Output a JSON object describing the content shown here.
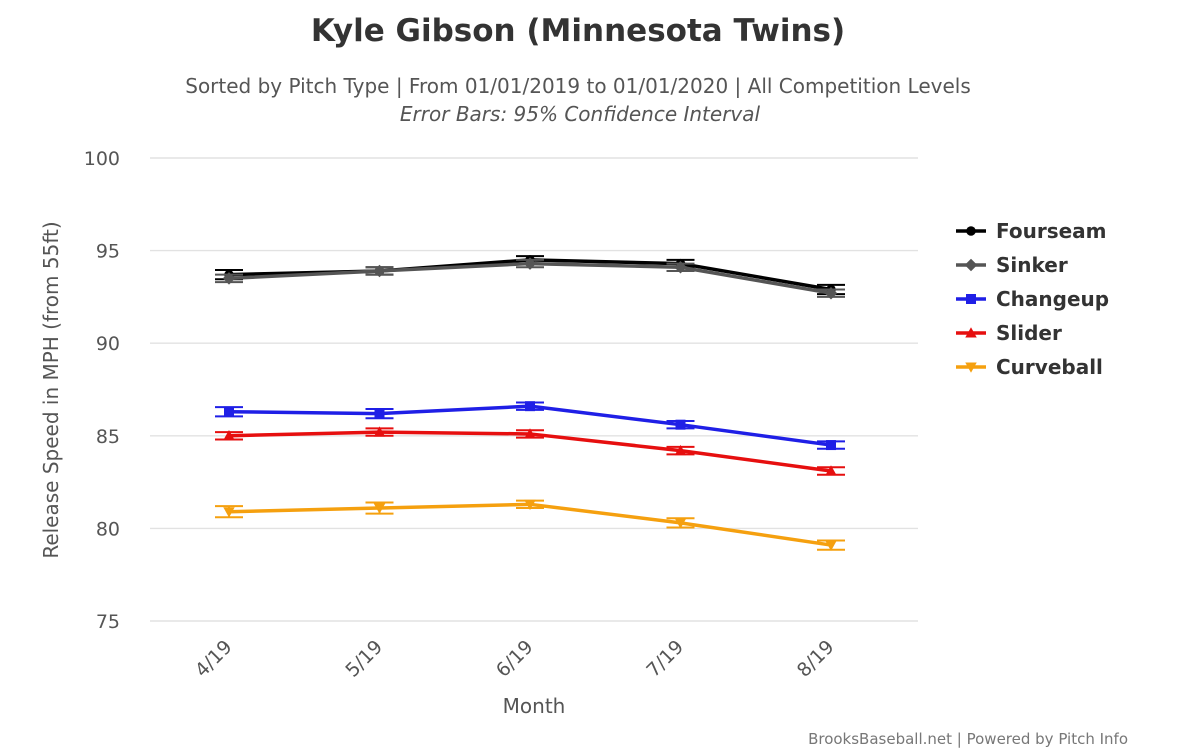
{
  "chart_data": {
    "type": "line",
    "title": "Kyle Gibson (Minnesota Twins)",
    "subtitle": "Sorted by Pitch Type | From 01/01/2019 to 01/01/2020 | All Competition Levels",
    "subtitle2": "Error Bars: 95% Confidence Interval",
    "xlabel": "Month",
    "ylabel": "Release Speed in MPH (from 55ft)",
    "categories": [
      "4/19",
      "5/19",
      "6/19",
      "7/19",
      "8/19"
    ],
    "ylim": [
      75,
      100
    ],
    "yticks": [
      75,
      80,
      85,
      90,
      95,
      100
    ],
    "grid": true,
    "legend_position": "right",
    "credit": "BrooksBaseball.net | Powered by Pitch Info",
    "series": [
      {
        "name": "Fourseam",
        "color": "#000000",
        "marker": "circle",
        "values": [
          93.7,
          93.9,
          94.5,
          94.3,
          92.9
        ],
        "err": [
          0.25,
          0.2,
          0.2,
          0.2,
          0.25
        ]
      },
      {
        "name": "Sinker",
        "color": "#555555",
        "marker": "diamond",
        "values": [
          93.5,
          93.9,
          94.3,
          94.1,
          92.7
        ],
        "err": [
          0.2,
          0.2,
          0.2,
          0.2,
          0.2
        ]
      },
      {
        "name": "Changeup",
        "color": "#1f1fe6",
        "marker": "square",
        "values": [
          86.3,
          86.2,
          86.6,
          85.6,
          84.5
        ],
        "err": [
          0.25,
          0.25,
          0.2,
          0.2,
          0.2
        ]
      },
      {
        "name": "Slider",
        "color": "#e60f0f",
        "marker": "triangle-up",
        "values": [
          85.0,
          85.2,
          85.1,
          84.2,
          83.1
        ],
        "err": [
          0.2,
          0.2,
          0.2,
          0.2,
          0.2
        ]
      },
      {
        "name": "Curveball",
        "color": "#f5a00f",
        "marker": "triangle-down",
        "values": [
          80.9,
          81.1,
          81.3,
          80.3,
          79.1
        ],
        "err": [
          0.3,
          0.3,
          0.2,
          0.25,
          0.25
        ]
      }
    ]
  }
}
